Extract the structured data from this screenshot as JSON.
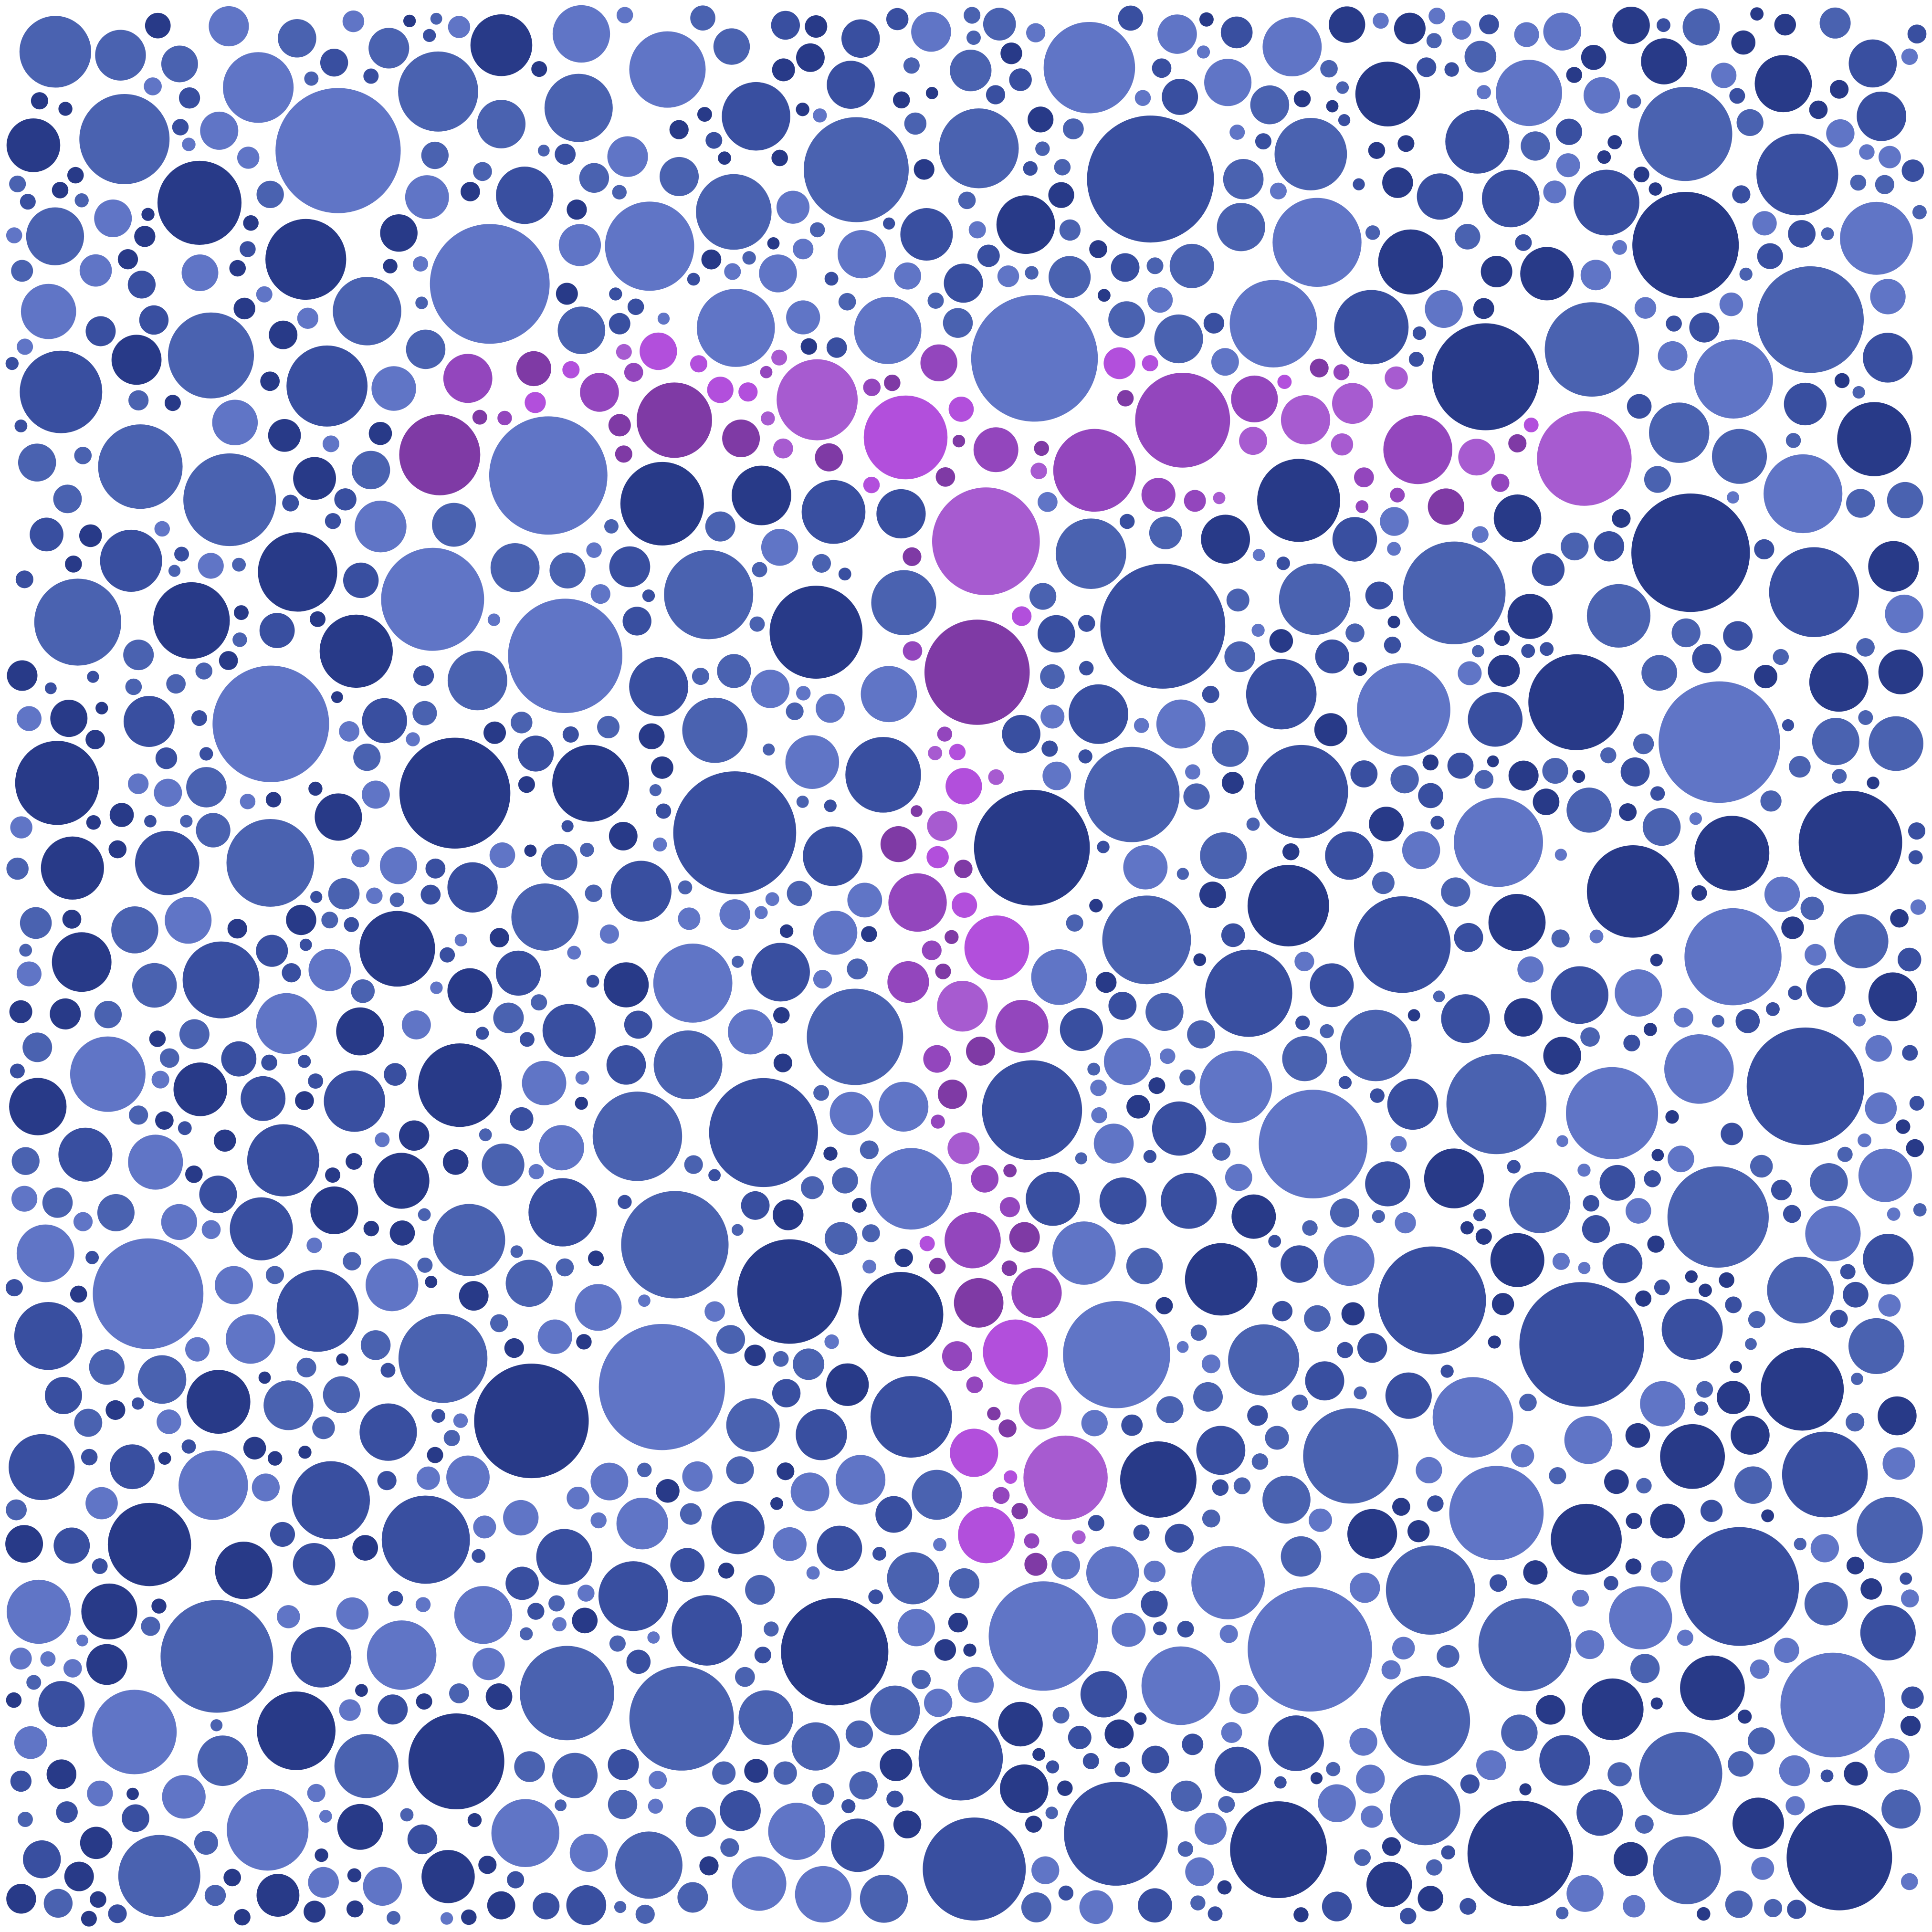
{
  "plate": {
    "figure": "7",
    "background_color": "#ffffff",
    "figure_colors": [
      "#7f3aa5",
      "#9346bd",
      "#a75bd0",
      "#b24fdc"
    ],
    "field_colors": [
      "#283a88",
      "#394fa0",
      "#4a62b0",
      "#6075c6"
    ]
  }
}
